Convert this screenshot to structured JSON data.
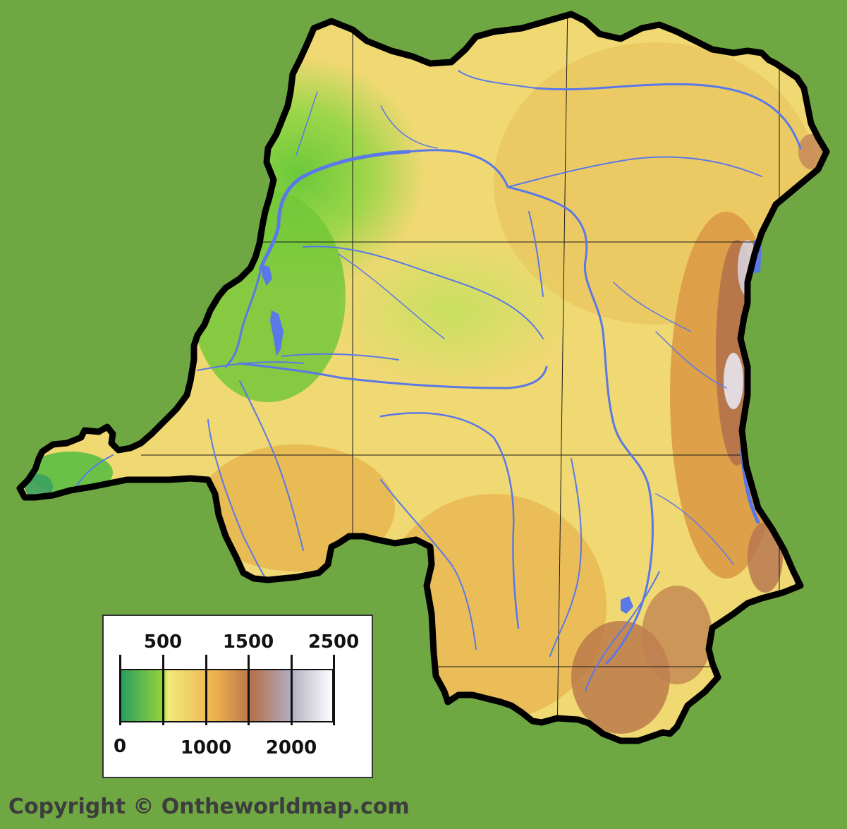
{
  "map": {
    "colors": {
      "background": "#6fa843",
      "border": "#000000",
      "rivers": "#5a78e8",
      "lowland": "#7ccd3c",
      "plateau": "#f0d872",
      "highland": "#e4a64a",
      "mountain": "#b76a44",
      "peak": "#f4f2f8"
    }
  },
  "legend": {
    "top_labels": [
      "500",
      "1500",
      "2500"
    ],
    "bottom_labels": [
      "0",
      "1000",
      "2000"
    ],
    "colors": [
      "#2a9f5e",
      "#96d43a",
      "#f2ea78",
      "#ecb04e",
      "#b6714d",
      "#b0acc0",
      "#ffffff"
    ]
  },
  "copyright": "Copyright © Ontheworldmap.com"
}
